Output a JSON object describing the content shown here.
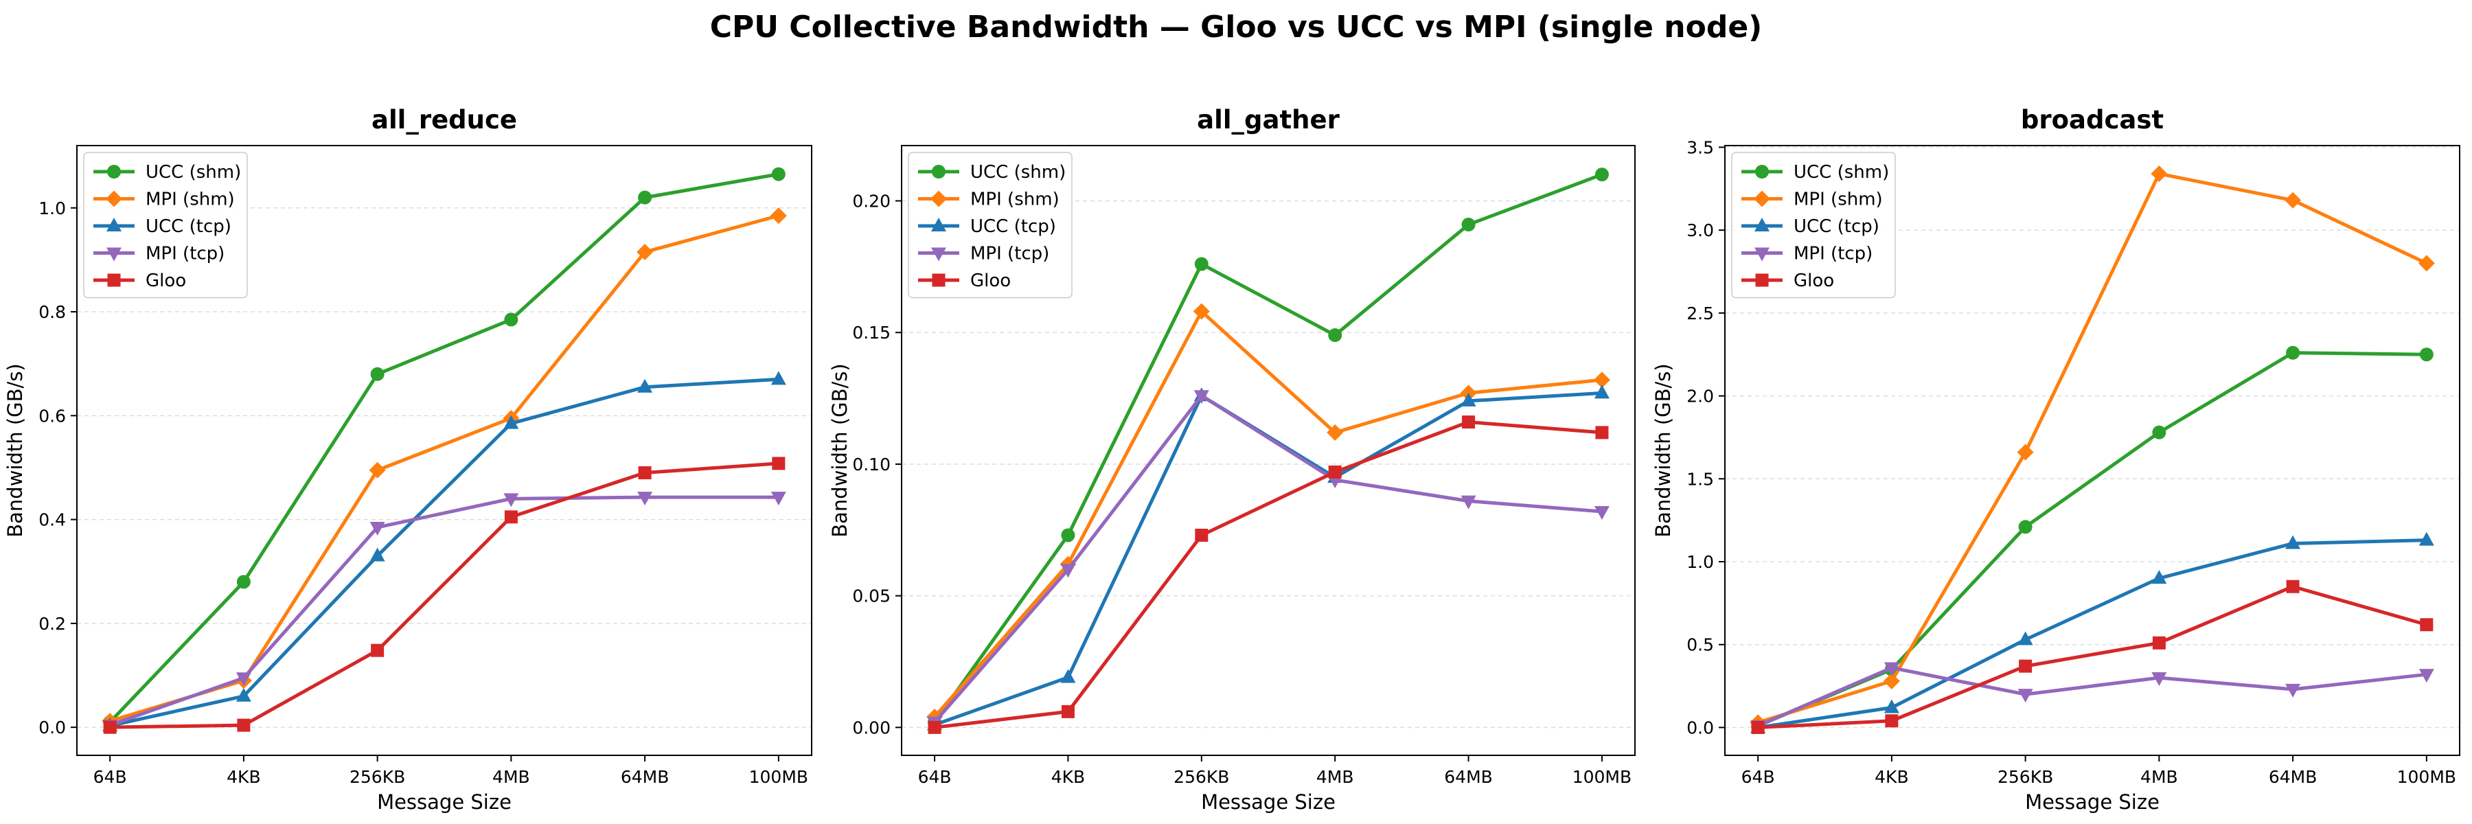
{
  "suptitle": "CPU Collective Bandwidth — Gloo vs UCC vs MPI (single node)",
  "colors": {
    "UCC (shm)": "#2ca02c",
    "MPI (shm)": "#ff7f0e",
    "UCC (tcp)": "#1f77b4",
    "MPI (tcp)": "#9467bd",
    "Gloo": "#d62728"
  },
  "markers": {
    "UCC (shm)": "circle",
    "MPI (shm)": "diamond",
    "UCC (tcp)": "triangle-up",
    "MPI (tcp)": "triangle-down",
    "Gloo": "square"
  },
  "chart_data": [
    {
      "type": "line",
      "title": "all_reduce",
      "xlabel": "Message Size",
      "ylabel": "Bandwidth (GB/s)",
      "categories": [
        "64B",
        "4KB",
        "256KB",
        "4MB",
        "64MB",
        "100MB"
      ],
      "ylim": [
        -0.054,
        1.12
      ],
      "yticks": [
        0.0,
        0.2,
        0.4,
        0.6,
        0.8,
        1.0
      ],
      "ytick_labels": [
        "0.0",
        "0.2",
        "0.4",
        "0.6",
        "0.8",
        "1.0"
      ],
      "grid": "horizontal dashed",
      "legend": "top-left",
      "series": [
        {
          "name": "UCC (shm)",
          "values": [
            0.01,
            0.28,
            0.68,
            0.785,
            1.02,
            1.065
          ]
        },
        {
          "name": "MPI (shm)",
          "values": [
            0.012,
            0.09,
            0.495,
            0.595,
            0.915,
            0.985
          ]
        },
        {
          "name": "UCC (tcp)",
          "values": [
            0.003,
            0.06,
            0.33,
            0.585,
            0.655,
            0.67
          ]
        },
        {
          "name": "MPI (tcp)",
          "values": [
            0.004,
            0.095,
            0.385,
            0.44,
            0.443,
            0.443
          ]
        },
        {
          "name": "Gloo",
          "values": [
            0.0,
            0.004,
            0.148,
            0.405,
            0.49,
            0.508
          ]
        }
      ]
    },
    {
      "type": "line",
      "title": "all_gather",
      "xlabel": "Message Size",
      "ylabel": "Bandwidth (GB/s)",
      "categories": [
        "64B",
        "4KB",
        "256KB",
        "4MB",
        "64MB",
        "100MB"
      ],
      "ylim": [
        -0.0106,
        0.221
      ],
      "yticks": [
        0.0,
        0.05,
        0.1,
        0.15,
        0.2
      ],
      "ytick_labels": [
        "0.00",
        "0.05",
        "0.10",
        "0.15",
        "0.20"
      ],
      "grid": "horizontal dashed",
      "legend": "top-left",
      "series": [
        {
          "name": "UCC (shm)",
          "values": [
            0.002,
            0.073,
            0.176,
            0.149,
            0.191,
            0.21
          ]
        },
        {
          "name": "MPI (shm)",
          "values": [
            0.004,
            0.062,
            0.158,
            0.112,
            0.127,
            0.132
          ]
        },
        {
          "name": "UCC (tcp)",
          "values": [
            0.001,
            0.019,
            0.126,
            0.095,
            0.124,
            0.127
          ]
        },
        {
          "name": "MPI (tcp)",
          "values": [
            0.002,
            0.06,
            0.126,
            0.094,
            0.086,
            0.082
          ]
        },
        {
          "name": "Gloo",
          "values": [
            0.0,
            0.006,
            0.073,
            0.097,
            0.116,
            0.112
          ]
        }
      ]
    },
    {
      "type": "line",
      "title": "broadcast",
      "xlabel": "Message Size",
      "ylabel": "Bandwidth (GB/s)",
      "categories": [
        "64B",
        "4KB",
        "256KB",
        "4MB",
        "64MB",
        "100MB"
      ],
      "ylim": [
        -0.168,
        3.51
      ],
      "yticks": [
        0.0,
        0.5,
        1.0,
        1.5,
        2.0,
        2.5,
        3.0,
        3.5
      ],
      "ytick_labels": [
        "0.0",
        "0.5",
        "1.0",
        "1.5",
        "2.0",
        "2.5",
        "3.0",
        "3.5"
      ],
      "grid": "horizontal dashed",
      "legend": "top-left",
      "series": [
        {
          "name": "UCC (shm)",
          "values": [
            0.01,
            0.35,
            1.21,
            1.78,
            2.26,
            2.25
          ]
        },
        {
          "name": "MPI (shm)",
          "values": [
            0.03,
            0.28,
            1.66,
            3.34,
            3.18,
            2.8
          ]
        },
        {
          "name": "UCC (tcp)",
          "values": [
            0.0,
            0.12,
            0.53,
            0.9,
            1.11,
            1.13
          ]
        },
        {
          "name": "MPI (tcp)",
          "values": [
            0.01,
            0.36,
            0.2,
            0.3,
            0.23,
            0.32
          ]
        },
        {
          "name": "Gloo",
          "values": [
            0.0,
            0.04,
            0.37,
            0.51,
            0.85,
            0.62
          ]
        }
      ]
    }
  ]
}
